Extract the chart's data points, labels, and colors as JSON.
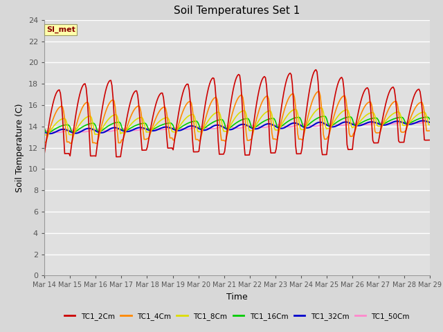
{
  "title": "Soil Temperatures Set 1",
  "xlabel": "Time",
  "ylabel": "Soil Temperature (C)",
  "annotation": "SI_met",
  "ylim": [
    0,
    24
  ],
  "yticks": [
    0,
    2,
    4,
    6,
    8,
    10,
    12,
    14,
    16,
    18,
    20,
    22,
    24
  ],
  "x_labels": [
    "Mar 14",
    "Mar 15",
    "Mar 16",
    "Mar 17",
    "Mar 18",
    "Mar 19",
    "Mar 20",
    "Mar 21",
    "Mar 22",
    "Mar 23",
    "Mar 24",
    "Mar 25",
    "Mar 26",
    "Mar 27",
    "Mar 28",
    "Mar 29"
  ],
  "series_colors": [
    "#cc0000",
    "#ff8800",
    "#dddd00",
    "#00cc00",
    "#0000cc",
    "#ff88cc"
  ],
  "series_names": [
    "TC1_2Cm",
    "TC1_4Cm",
    "TC1_8Cm",
    "TC1_16Cm",
    "TC1_32Cm",
    "TC1_50Cm"
  ],
  "fig_bg_color": "#d8d8d8",
  "plot_bg_color": "#e0e0e0",
  "grid_color": "#ffffff",
  "title_fontsize": 11,
  "axis_fontsize": 9,
  "tick_fontsize": 8
}
